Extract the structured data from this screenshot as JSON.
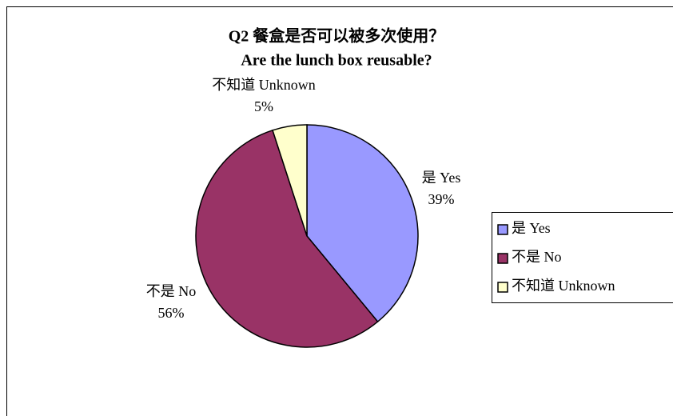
{
  "chart_data": {
    "type": "pie",
    "title": "Q2 餐盒是否可以被多次使用？",
    "subtitle": "Are the lunch box reusable?",
    "categories": [
      "是 Yes",
      "不是 No",
      "不知道 Unknown"
    ],
    "values": [
      39,
      56,
      5
    ],
    "value_labels": [
      "39%",
      "56%",
      "5%"
    ],
    "colors": [
      "#9999ff",
      "#993366",
      "#ffffcc"
    ],
    "legend": "right"
  }
}
